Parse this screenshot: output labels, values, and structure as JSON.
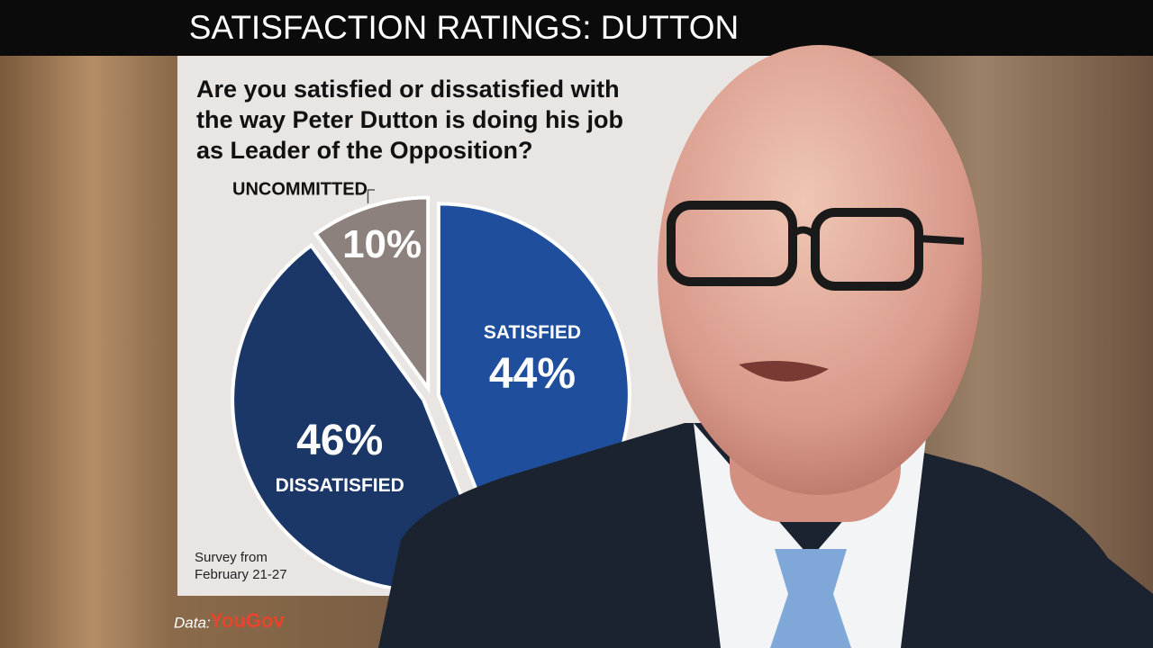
{
  "chart_data": {
    "type": "pie",
    "title": "SATISFACTION RATINGS: DUTTON",
    "subtitle": [
      "Are you satisfied or dissatisfied with",
      "the way Peter Dutton is doing his job",
      "as Leader of the Opposition?"
    ],
    "categories": [
      "SATISFIED",
      "DISSATISFIED",
      "UNCOMMITTED"
    ],
    "values": [
      44,
      46,
      10
    ],
    "value_labels": [
      "44%",
      "46%",
      "10%"
    ],
    "colors": [
      "#1f4f9c",
      "#1a3767",
      "#8c817c"
    ],
    "note": [
      "Survey from",
      "February 21-27"
    ],
    "source": {
      "label": "Data:",
      "name": "YouGov"
    }
  }
}
